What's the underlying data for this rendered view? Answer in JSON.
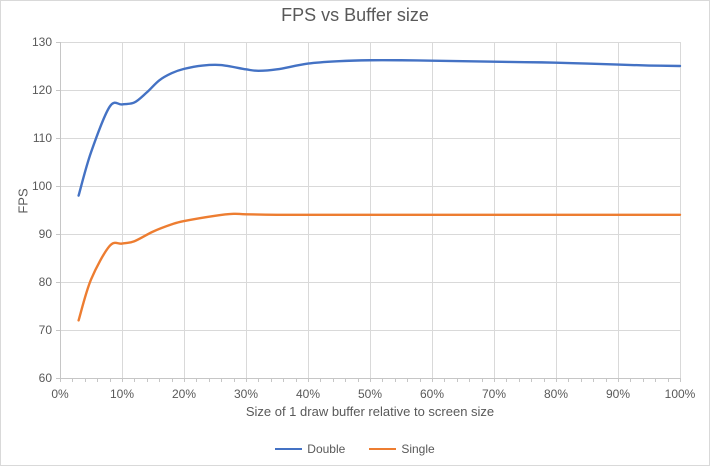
{
  "window": {
    "background": "#FFFFFF",
    "border_color": "#D9D9D9"
  },
  "chart_data": {
    "type": "line",
    "title": "FPS vs Buffer size",
    "xlabel": "Size of 1 draw buffer relative to screen size",
    "ylabel": "FPS",
    "xlim": [
      0,
      100
    ],
    "ylim": [
      60,
      130
    ],
    "x_tick_values": [
      0,
      10,
      20,
      30,
      40,
      50,
      60,
      70,
      80,
      90,
      100
    ],
    "x_tick_labels": [
      "0%",
      "10%",
      "20%",
      "30%",
      "40%",
      "50%",
      "60%",
      "70%",
      "80%",
      "90%",
      "100%"
    ],
    "y_tick_values": [
      60,
      70,
      80,
      90,
      100,
      110,
      120,
      130
    ],
    "y_tick_labels": [
      "60",
      "70",
      "80",
      "90",
      "100",
      "110",
      "120",
      "130"
    ],
    "minor_x_tick_step": 2,
    "grid": true,
    "legend_position": "bottom",
    "smooth_lines": true,
    "axis_color": "#C6C6C6",
    "grid_color": "#D9D9D9",
    "text_color": "#595959",
    "series": [
      {
        "name": "Double",
        "color": "#4472C4",
        "x": [
          3,
          5,
          8,
          10,
          12,
          14,
          16,
          18,
          20,
          23,
          26,
          30,
          32,
          35,
          40,
          45,
          50,
          55,
          60,
          65,
          70,
          75,
          80,
          85,
          90,
          95,
          100
        ],
        "y": [
          98,
          107,
          116.5,
          117,
          117.4,
          119.5,
          122,
          123.5,
          124.4,
          125.1,
          125.2,
          124.3,
          124,
          124.3,
          125.5,
          126,
          126.2,
          126.2,
          126.1,
          126,
          125.9,
          125.8,
          125.7,
          125.5,
          125.3,
          125.1,
          125
        ]
      },
      {
        "name": "Single",
        "color": "#ED7D31",
        "x": [
          3,
          5,
          8,
          10,
          12,
          15,
          18,
          20,
          25,
          28,
          30,
          35,
          40,
          45,
          50,
          55,
          60,
          65,
          70,
          75,
          80,
          85,
          90,
          95,
          100
        ],
        "y": [
          72,
          80.5,
          87.5,
          88,
          88.5,
          90.5,
          92,
          92.7,
          93.8,
          94.2,
          94.1,
          94,
          94,
          94,
          94,
          94,
          94,
          94,
          94,
          94,
          94,
          94,
          94,
          94,
          94
        ]
      }
    ]
  }
}
